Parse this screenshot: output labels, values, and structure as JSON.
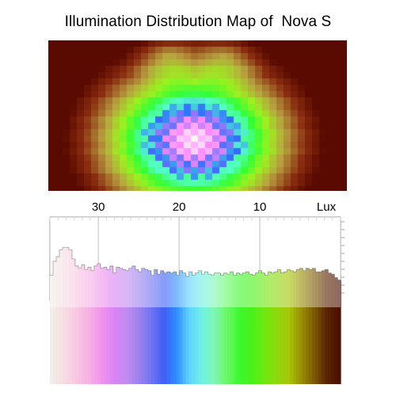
{
  "title": "Illumination Distribution Map of  Nova S",
  "chart_data": [
    {
      "type": "heatmap",
      "title": "Illumination Distribution Map of  Nova S",
      "colorscale": [
        "#5a0a00",
        "#8a2c10",
        "#b8a040",
        "#9ef020",
        "#33ff33",
        "#55ffcc",
        "#2f6cff",
        "#ff88ff",
        "#fff2f8"
      ],
      "background": "#5a0a00"
    },
    {
      "type": "bar",
      "xlabel": "Lux",
      "ticks": [
        "30",
        "20",
        "10",
        "Lux"
      ],
      "tick_values": [
        30,
        20,
        10
      ],
      "xlim": [
        36,
        0
      ],
      "bar_top_counts": [
        22,
        34,
        38,
        44,
        46,
        46,
        44,
        36,
        30,
        28,
        31,
        27,
        29,
        26,
        30,
        32,
        28,
        29,
        27,
        30,
        24,
        29,
        28,
        27,
        26,
        28,
        30,
        27,
        25,
        28,
        27,
        26,
        22,
        27,
        23,
        26,
        24,
        25,
        24,
        25,
        22,
        26,
        24,
        21,
        25,
        22,
        24,
        26,
        23,
        25,
        23,
        22,
        24,
        24,
        22,
        24,
        23,
        25,
        22,
        24,
        23,
        24,
        25,
        23,
        22,
        24,
        26,
        24,
        22,
        25,
        24,
        25,
        27,
        24,
        25,
        27,
        26,
        25,
        27,
        28,
        26,
        28,
        27,
        28,
        25,
        25,
        26,
        27,
        24,
        23,
        20,
        18
      ],
      "ymax": 72,
      "colors": [
        "#f2ede6",
        "#f6dce4",
        "#f8c8e2",
        "#f7b0e4",
        "#f194ee",
        "#db84f4",
        "#c18cf0",
        "#9c82ee",
        "#6e74f2",
        "#3f5ff4",
        "#2f8cff",
        "#5fd2ff",
        "#6ff0e6",
        "#7ff7b5",
        "#6cf86a",
        "#3ff82f",
        "#48f21a",
        "#6fe80f",
        "#8fd80d",
        "#a7c508",
        "#9a8d06",
        "#7c5a03",
        "#5c2401",
        "#4b1000"
      ]
    }
  ]
}
